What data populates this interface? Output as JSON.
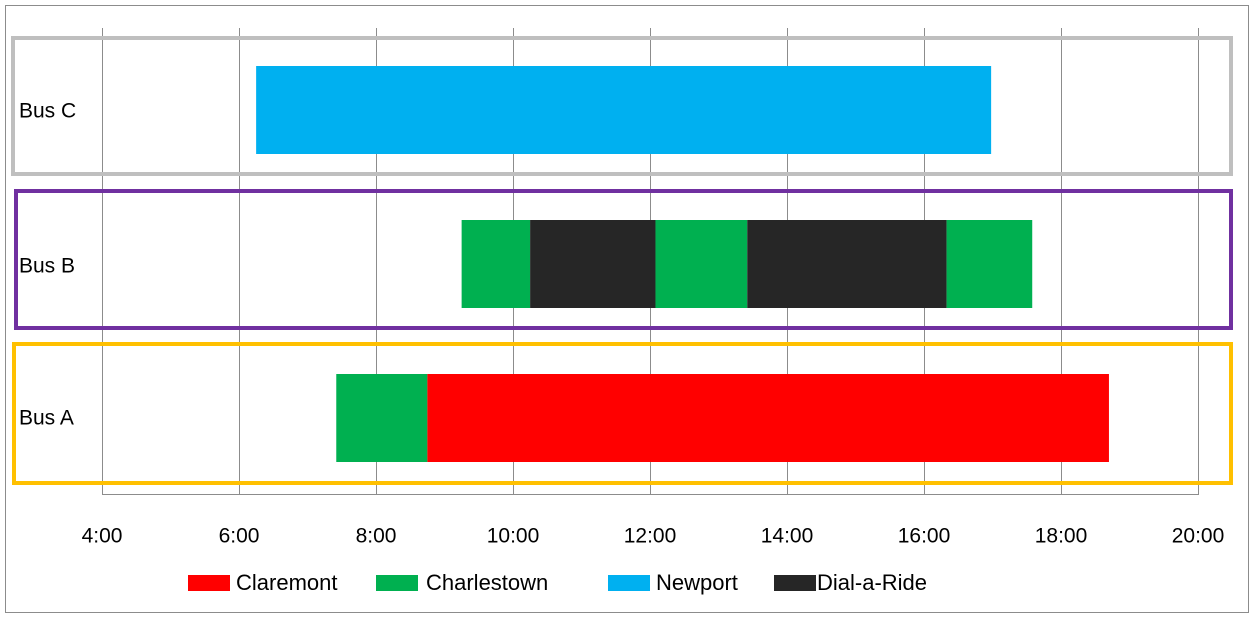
{
  "chart_data": {
    "type": "bar",
    "orientation": "horizontal",
    "stacked": true,
    "rows": [
      {
        "label": "Bus C",
        "frame_color": "#BFBFBF",
        "segments": [
          {
            "service": "Newport",
            "start": 6.25,
            "end": 16.98
          }
        ]
      },
      {
        "label": "Bus B",
        "frame_color": "#7030A0",
        "segments": [
          {
            "service": "Charlestown",
            "start": 9.25,
            "end": 10.25
          },
          {
            "service": "Dial-a-Ride",
            "start": 10.25,
            "end": 12.08
          },
          {
            "service": "Charlestown",
            "start": 12.08,
            "end": 13.42
          },
          {
            "service": "Dial-a-Ride",
            "start": 13.42,
            "end": 16.33
          },
          {
            "service": "Charlestown",
            "start": 16.33,
            "end": 17.58
          }
        ]
      },
      {
        "label": "Bus A",
        "frame_color": "#FFC000",
        "segments": [
          {
            "service": "Charlestown",
            "start": 7.42,
            "end": 8.75
          },
          {
            "service": "Claremont",
            "start": 8.75,
            "end": 18.7
          }
        ]
      }
    ],
    "x_ticks": [
      {
        "value": 4,
        "label": "4:00"
      },
      {
        "value": 6,
        "label": "6:00"
      },
      {
        "value": 8,
        "label": "8:00"
      },
      {
        "value": 10,
        "label": "10:00"
      },
      {
        "value": 12,
        "label": "12:00"
      },
      {
        "value": 14,
        "label": "14:00"
      },
      {
        "value": 16,
        "label": "16:00"
      },
      {
        "value": 18,
        "label": "18:00"
      },
      {
        "value": 20,
        "label": "20:00"
      }
    ],
    "xlim": [
      4,
      20
    ],
    "grid": true,
    "legend_position": "bottom",
    "legend": [
      {
        "name": "Claremont",
        "color": "#FF0000"
      },
      {
        "name": "Charlestown",
        "color": "#00B050"
      },
      {
        "name": "Newport",
        "color": "#00B0F0"
      },
      {
        "name": "Dial-a-Ride",
        "color": "#262626"
      }
    ]
  }
}
